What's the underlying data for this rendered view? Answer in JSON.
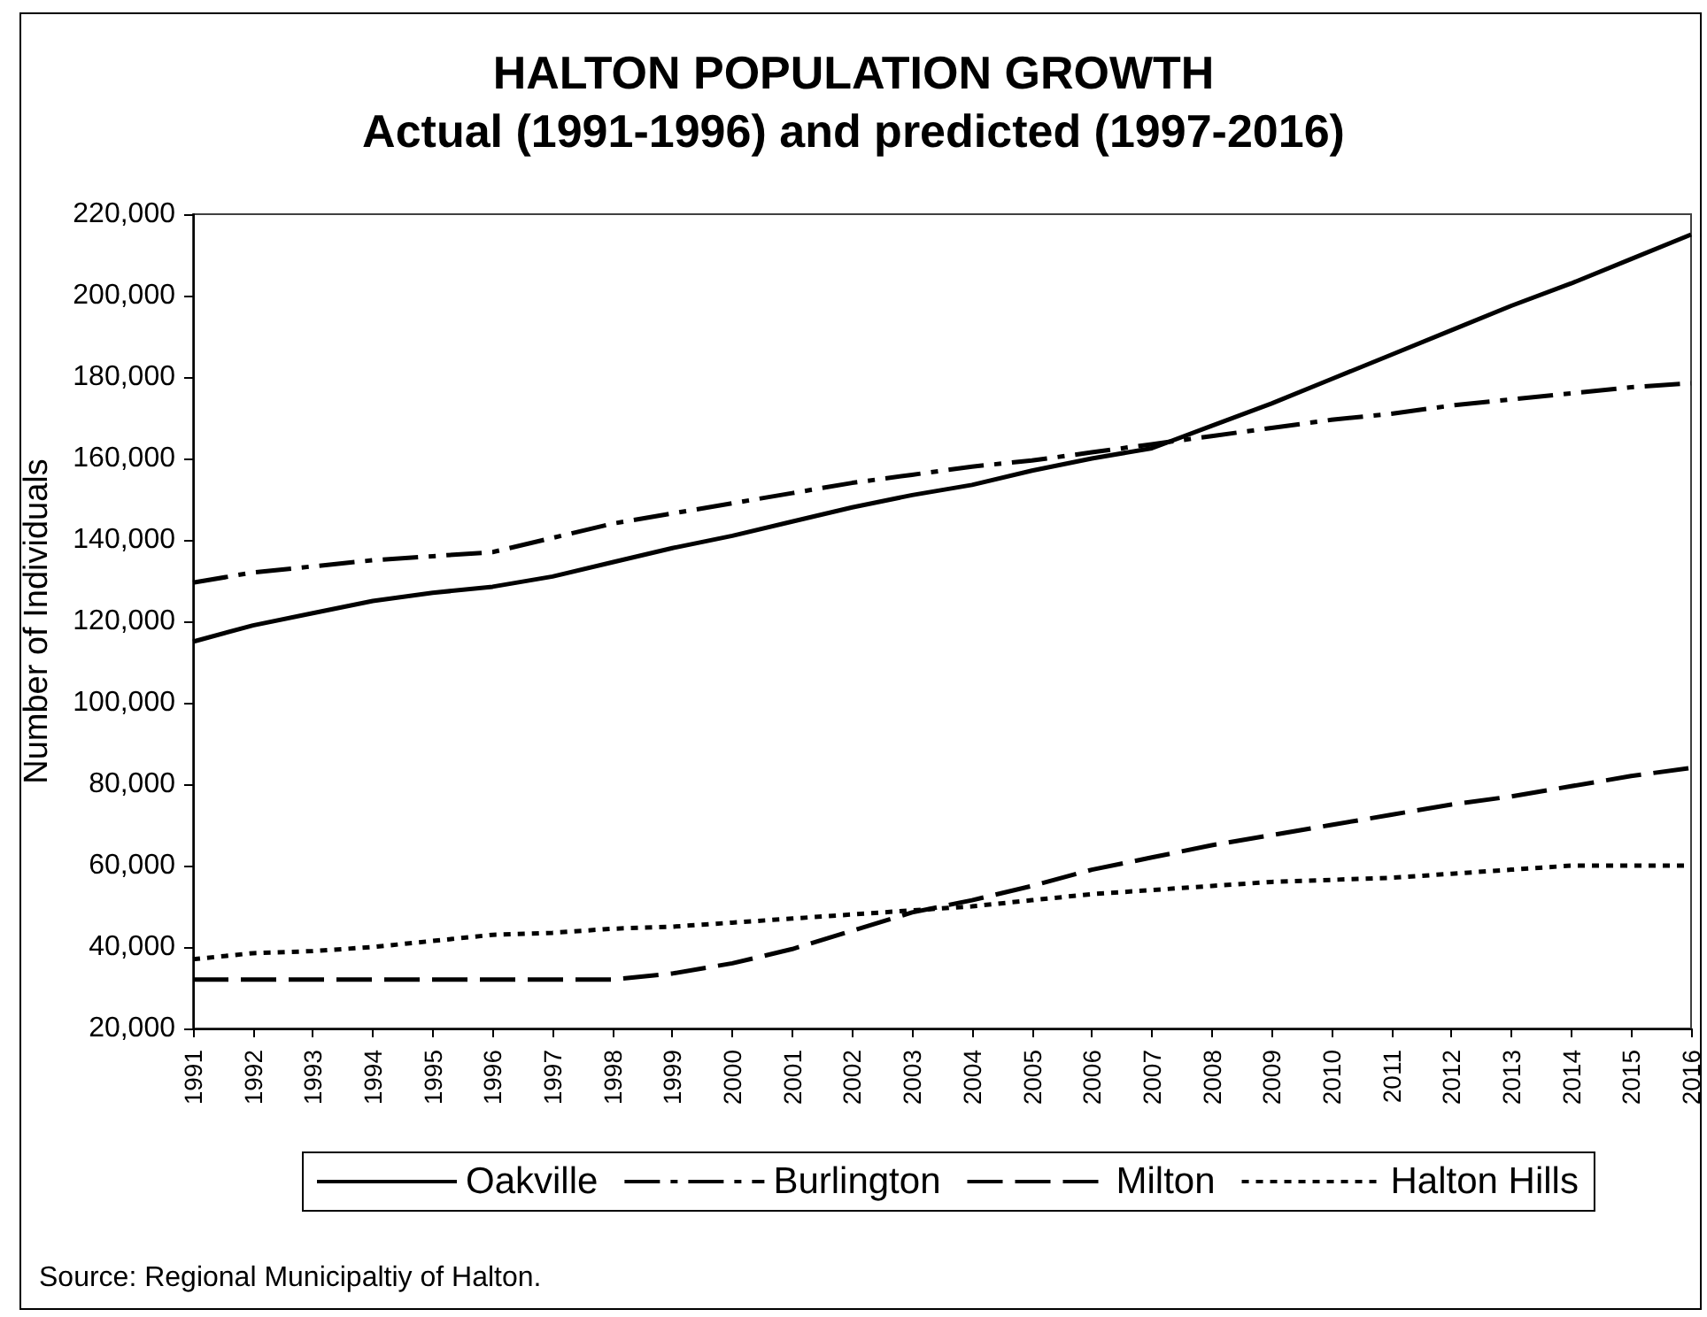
{
  "chart_data": {
    "type": "line",
    "title": "HALTON POPULATION GROWTH",
    "subtitle": "Actual (1991-1996) and predicted (1997-2016)",
    "ylabel": "Number of Individuals",
    "annotations": [
      "Source: Regional Municipaltiy of Halton."
    ],
    "categories": [
      "1991",
      "1992",
      "1993",
      "1994",
      "1995",
      "1996",
      "1997",
      "1998",
      "1999",
      "2000",
      "2001",
      "2002",
      "2003",
      "2004",
      "2005",
      "2006",
      "2007",
      "2008",
      "2009",
      "2010",
      "2011",
      "2012",
      "2013",
      "2014",
      "2015",
      "2016"
    ],
    "series": [
      {
        "name": "Oakville",
        "color": "#000000",
        "line_style": "solid",
        "values": [
          115000,
          119000,
          122000,
          125000,
          127000,
          128500,
          131000,
          134500,
          138000,
          141000,
          144500,
          148000,
          151000,
          153500,
          157000,
          160000,
          162500,
          168000,
          173500,
          179500,
          185500,
          191500,
          197500,
          203000,
          209000,
          215000
        ]
      },
      {
        "name": "Burlington",
        "color": "#000000",
        "line_style": "dashdot",
        "values": [
          129500,
          132000,
          133500,
          135000,
          136000,
          137000,
          140500,
          144000,
          146500,
          149000,
          151500,
          154000,
          156000,
          158000,
          159500,
          161500,
          163500,
          165500,
          167500,
          169500,
          171000,
          173000,
          174500,
          176000,
          177500,
          178500
        ]
      },
      {
        "name": "Milton",
        "color": "#000000",
        "line_style": "dashed",
        "values": [
          32000,
          32000,
          32000,
          32000,
          32000,
          32000,
          32000,
          32000,
          33500,
          36000,
          39500,
          44000,
          48500,
          51500,
          55000,
          59000,
          62000,
          65000,
          67500,
          70000,
          72500,
          75000,
          77000,
          79500,
          82000,
          84000
        ]
      },
      {
        "name": "Halton Hills",
        "color": "#000000",
        "line_style": "dotted",
        "values": [
          37000,
          38500,
          39000,
          40000,
          41500,
          43000,
          43500,
          44500,
          45000,
          46000,
          47000,
          48000,
          49000,
          50000,
          51500,
          53000,
          54000,
          55000,
          56000,
          56500,
          57000,
          58000,
          59000,
          60000,
          60000,
          60000
        ]
      }
    ],
    "ylim": [
      20000,
      220000
    ],
    "yticks": [
      {
        "value": 20000,
        "label": "20,000"
      },
      {
        "value": 40000,
        "label": "40,000"
      },
      {
        "value": 60000,
        "label": "60,000"
      },
      {
        "value": 80000,
        "label": "80,000"
      },
      {
        "value": 100000,
        "label": "100,000"
      },
      {
        "value": 120000,
        "label": "120,000"
      },
      {
        "value": 140000,
        "label": "140,000"
      },
      {
        "value": 160000,
        "label": "160,000"
      },
      {
        "value": 180000,
        "label": "180,000"
      },
      {
        "value": 200000,
        "label": "200,000"
      },
      {
        "value": 220000,
        "label": "220,000"
      }
    ],
    "grid": false,
    "legend": "bottom",
    "marker": "none"
  }
}
